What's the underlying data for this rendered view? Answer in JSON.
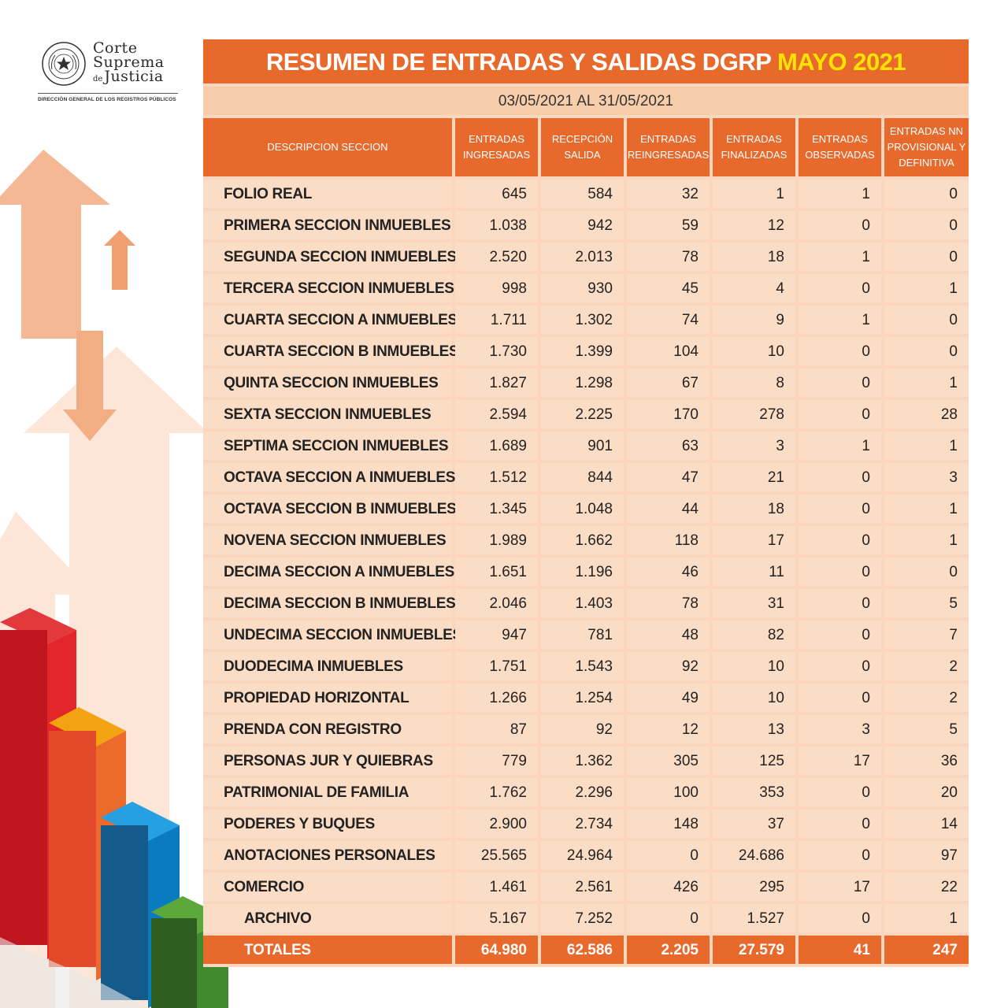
{
  "logo": {
    "line1": "Corte",
    "line2": "Suprema",
    "line3_prefix": "de",
    "line3": "Justicia",
    "subtitle": "DIRECCIÓN GENERAL DE LOS REGISTROS PÚBLICOS",
    "seal_text": "REPÚBLICA DEL PARAGUAY"
  },
  "title": {
    "main": "RESUMEN DE ENTRADAS Y SALIDAS DGRP",
    "highlight": "MAYO 2021"
  },
  "date_range": "03/05/2021 AL 31/05/2021",
  "colors": {
    "orange": "#e8692c",
    "peach": "#fbdcc5",
    "yellow": "#ffe300"
  },
  "columns": [
    [
      "DESCRIPCION SECCION"
    ],
    [
      "ENTRADAS",
      "INGRESADAS"
    ],
    [
      "RECEPCIÓN",
      "SALIDA"
    ],
    [
      "ENTRADAS",
      "REINGRESADAS"
    ],
    [
      "ENTRADAS",
      "FINALIZADAS"
    ],
    [
      "ENTRADAS",
      "OBSERVADAS"
    ],
    [
      "ENTRADAS NN",
      "PROVISIONAL Y",
      "DEFINITIVA"
    ]
  ],
  "rows": [
    [
      "FOLIO REAL",
      "645",
      "584",
      "32",
      "1",
      "1",
      "0"
    ],
    [
      "PRIMERA SECCION INMUEBLES",
      "1.038",
      "942",
      "59",
      "12",
      "0",
      "0"
    ],
    [
      "SEGUNDA SECCION INMUEBLES",
      "2.520",
      "2.013",
      "78",
      "18",
      "1",
      "0"
    ],
    [
      "TERCERA SECCION INMUEBLES",
      "998",
      "930",
      "45",
      "4",
      "0",
      "1"
    ],
    [
      "CUARTA SECCION A INMUEBLES",
      "1.711",
      "1.302",
      "74",
      "9",
      "1",
      "0"
    ],
    [
      "CUARTA SECCION B INMUEBLES",
      "1.730",
      "1.399",
      "104",
      "10",
      "0",
      "0"
    ],
    [
      "QUINTA SECCION INMUEBLES",
      "1.827",
      "1.298",
      "67",
      "8",
      "0",
      "1"
    ],
    [
      "SEXTA SECCION INMUEBLES",
      "2.594",
      "2.225",
      "170",
      "278",
      "0",
      "28"
    ],
    [
      "SEPTIMA SECCION INMUEBLES",
      "1.689",
      "901",
      "63",
      "3",
      "1",
      "1"
    ],
    [
      "OCTAVA SECCION A INMUEBLES",
      "1.512",
      "844",
      "47",
      "21",
      "0",
      "3"
    ],
    [
      "OCTAVA SECCION B INMUEBLES",
      "1.345",
      "1.048",
      "44",
      "18",
      "0",
      "1"
    ],
    [
      "NOVENA SECCION INMUEBLES",
      "1.989",
      "1.662",
      "118",
      "17",
      "0",
      "1"
    ],
    [
      "DECIMA SECCION A INMUEBLES",
      "1.651",
      "1.196",
      "46",
      "11",
      "0",
      "0"
    ],
    [
      "DECIMA SECCION B INMUEBLES",
      "2.046",
      "1.403",
      "78",
      "31",
      "0",
      "5"
    ],
    [
      "UNDECIMA SECCION INMUEBLES",
      "947",
      "781",
      "48",
      "82",
      "0",
      "7"
    ],
    [
      "DUODECIMA INMUEBLES",
      "1.751",
      "1.543",
      "92",
      "10",
      "0",
      "2"
    ],
    [
      "PROPIEDAD HORIZONTAL",
      "1.266",
      "1.254",
      "49",
      "10",
      "0",
      "2"
    ],
    [
      "PRENDA CON REGISTRO",
      "87",
      "92",
      "12",
      "13",
      "3",
      "5"
    ],
    [
      "PERSONAS JUR Y QUIEBRAS",
      "779",
      "1.362",
      "305",
      "125",
      "17",
      "36"
    ],
    [
      "PATRIMONIAL DE FAMILIA",
      "1.762",
      "2.296",
      "100",
      "353",
      "0",
      "20"
    ],
    [
      "PODERES Y BUQUES",
      "2.900",
      "2.734",
      "148",
      "37",
      "0",
      "14"
    ],
    [
      "ANOTACIONES PERSONALES",
      "25.565",
      "24.964",
      "0",
      "24.686",
      "0",
      "97"
    ],
    [
      "COMERCIO",
      "1.461",
      "2.561",
      "426",
      "295",
      "17",
      "22"
    ],
    [
      "ARCHIVO",
      "5.167",
      "7.252",
      "0",
      "1.527",
      "0",
      "1"
    ]
  ],
  "indented_rows": [
    23
  ],
  "totals": [
    "TOTALES",
    "64.980",
    "62.586",
    "2.205",
    "27.579",
    "41",
    "247"
  ]
}
